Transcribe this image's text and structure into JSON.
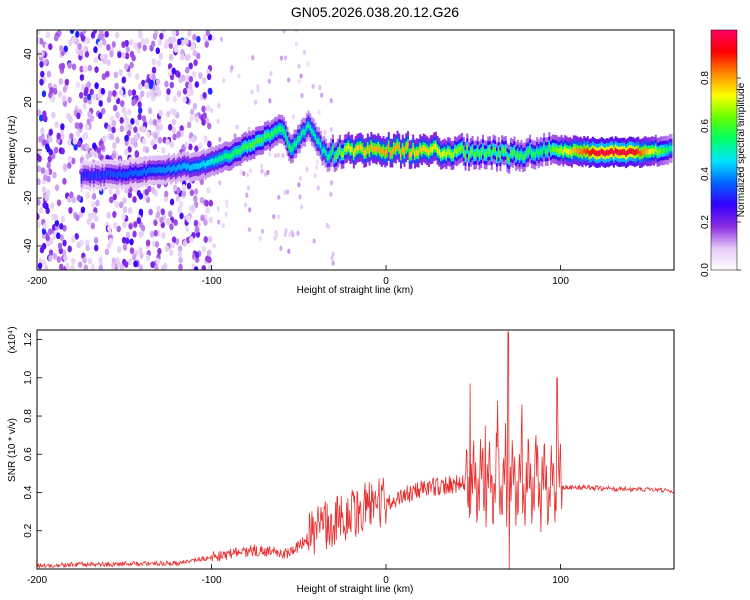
{
  "title": "GN05.2026.038.20.12.G26",
  "chart_data": [
    {
      "type": "heatmap",
      "xlabel": "Height of straight line (km)",
      "ylabel": "Frequency (Hz)",
      "xlim": [
        -200,
        165
      ],
      "ylim": [
        -50,
        50
      ],
      "xticks": [
        -200,
        -100,
        0,
        100
      ],
      "yticks": [
        -40,
        -20,
        0,
        20,
        40
      ],
      "colorbar": {
        "label": "Normalized spectral amplitude",
        "range": [
          0,
          1
        ],
        "ticks": [
          "0.0",
          "0.2",
          "0.4",
          "0.6",
          "0.8"
        ],
        "colors": [
          "#ffffff",
          "#e4c9f5",
          "#8a2be2",
          "#3300ff",
          "#0066ff",
          "#00e5ff",
          "#00ff66",
          "#66ff00",
          "#ffff00",
          "#ff8800",
          "#ff0000",
          "#ff0066"
        ]
      },
      "ridge": [
        {
          "x": -175,
          "y": -11,
          "a": 0.3
        },
        {
          "x": -150,
          "y": -10,
          "a": 0.35
        },
        {
          "x": -125,
          "y": -8,
          "a": 0.4
        },
        {
          "x": -105,
          "y": -6,
          "a": 0.45
        },
        {
          "x": -90,
          "y": -2,
          "a": 0.55
        },
        {
          "x": -75,
          "y": 3,
          "a": 0.6
        },
        {
          "x": -60,
          "y": 9,
          "a": 0.55
        },
        {
          "x": -55,
          "y": 0,
          "a": 0.55
        },
        {
          "x": -45,
          "y": 10,
          "a": 0.5
        },
        {
          "x": -35,
          "y": -2,
          "a": 0.5
        },
        {
          "x": -20,
          "y": 0,
          "a": 0.75
        },
        {
          "x": 0,
          "y": 0,
          "a": 0.8
        },
        {
          "x": 25,
          "y": 0,
          "a": 0.75
        },
        {
          "x": 50,
          "y": -1,
          "a": 0.6
        },
        {
          "x": 70,
          "y": -2,
          "a": 0.6
        },
        {
          "x": 90,
          "y": 0,
          "a": 0.55
        },
        {
          "x": 120,
          "y": -1,
          "a": 0.95
        },
        {
          "x": 140,
          "y": -1,
          "a": 0.95
        },
        {
          "x": 163,
          "y": 0,
          "a": 0.5
        }
      ]
    },
    {
      "type": "line",
      "xlabel": "Height of straight line (km)",
      "ylabel": "SNR (10 * v/v)",
      "yscale_label": "(x10⁴)",
      "xlim": [
        -200,
        165
      ],
      "ylim": [
        0,
        1.25
      ],
      "xticks": [
        -200,
        -100,
        0,
        100
      ],
      "yticks": [
        "0.2",
        "0.4",
        "0.6",
        "0.8",
        "1.0",
        "1.2"
      ],
      "color": "#e83030",
      "envelope": [
        {
          "x": -200,
          "y": 0.02
        },
        {
          "x": -120,
          "y": 0.03
        },
        {
          "x": -95,
          "y": 0.07
        },
        {
          "x": -75,
          "y": 0.1
        },
        {
          "x": -55,
          "y": 0.08
        },
        {
          "x": -40,
          "y": 0.2
        },
        {
          "x": -20,
          "y": 0.3
        },
        {
          "x": 0,
          "y": 0.35
        },
        {
          "x": 20,
          "y": 0.42
        },
        {
          "x": 45,
          "y": 0.45
        },
        {
          "x": 55,
          "y": 0.45
        },
        {
          "x": 70,
          "y": 0.45
        },
        {
          "x": 85,
          "y": 0.45
        },
        {
          "x": 100,
          "y": 0.43
        },
        {
          "x": 130,
          "y": 0.42
        },
        {
          "x": 165,
          "y": 0.41
        }
      ],
      "peaks": [
        {
          "x": 48,
          "y": 0.97
        },
        {
          "x": 57,
          "y": 0.75
        },
        {
          "x": 64,
          "y": 0.88
        },
        {
          "x": 70,
          "y": 1.24
        },
        {
          "x": 78,
          "y": 0.86
        },
        {
          "x": 86,
          "y": 0.7
        },
        {
          "x": 98,
          "y": 1.0
        }
      ]
    }
  ]
}
